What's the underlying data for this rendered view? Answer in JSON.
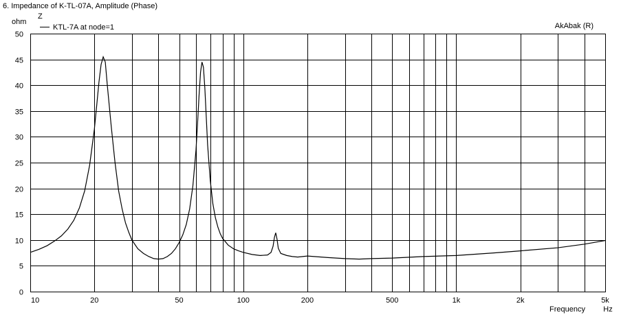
{
  "window": {
    "title": "6. Impedance of K-TL-07A, Amplitude (Phase)"
  },
  "chart_data": {
    "type": "line",
    "title": "6. Impedance of K-TL-07A, Amplitude (Phase)",
    "ylabel_unit": "ohm",
    "ylabel_symbol": "Z",
    "xlabel": "Frequency",
    "xunit": "Hz",
    "watermark": "AkAbak (R)",
    "xscale": "log",
    "xlim": [
      10,
      5000
    ],
    "ylim": [
      0,
      50
    ],
    "grid": true,
    "legend_placement": "top-left",
    "x_ticks": [
      {
        "value": 10,
        "label": "10"
      },
      {
        "value": 20,
        "label": "20"
      },
      {
        "value": 50,
        "label": "50"
      },
      {
        "value": 100,
        "label": "100"
      },
      {
        "value": 200,
        "label": "200"
      },
      {
        "value": 500,
        "label": "500"
      },
      {
        "value": 1000,
        "label": "1k"
      },
      {
        "value": 2000,
        "label": "2k"
      },
      {
        "value": 5000,
        "label": "5k"
      }
    ],
    "y_ticks": [
      0,
      5,
      10,
      15,
      20,
      25,
      30,
      35,
      40,
      45,
      50
    ],
    "series": [
      {
        "name": "KTL-7A at node=1",
        "color": "#000000",
        "x": [
          10,
          11,
          12,
          13,
          14,
          15,
          16,
          17,
          18,
          19,
          20,
          20.5,
          21,
          21.5,
          22,
          22.5,
          23,
          24,
          25,
          26,
          27,
          28,
          29,
          30,
          32,
          34,
          36,
          38,
          40,
          42,
          44,
          46,
          48,
          50,
          52,
          54,
          56,
          58,
          60,
          61,
          62,
          63,
          64,
          65,
          66,
          67,
          68,
          70,
          72,
          74,
          76,
          78,
          80,
          85,
          90,
          95,
          100,
          110,
          120,
          130,
          135,
          138,
          140,
          142,
          144,
          146,
          150,
          160,
          170,
          180,
          190,
          200,
          250,
          300,
          350,
          400,
          500,
          700,
          1000,
          1500,
          2000,
          3000,
          4000,
          5000
        ],
        "y": [
          7.6,
          8.2,
          8.9,
          9.8,
          10.8,
          12.1,
          13.8,
          16.2,
          19.5,
          24.5,
          31.5,
          36.0,
          40.5,
          44.0,
          45.5,
          44.5,
          40.0,
          32.0,
          25.0,
          19.5,
          16.0,
          13.3,
          11.5,
          10.0,
          8.3,
          7.4,
          6.8,
          6.4,
          6.3,
          6.4,
          6.8,
          7.4,
          8.3,
          9.5,
          11.0,
          13.0,
          16.0,
          20.5,
          27.5,
          32.5,
          38.0,
          42.5,
          44.5,
          43.5,
          39.5,
          34.0,
          28.5,
          21.5,
          17.0,
          14.3,
          12.5,
          11.2,
          10.3,
          9.0,
          8.3,
          7.9,
          7.6,
          7.2,
          7.0,
          7.1,
          7.6,
          8.8,
          10.5,
          11.4,
          10.2,
          8.4,
          7.4,
          7.0,
          6.8,
          6.7,
          6.8,
          6.9,
          6.6,
          6.4,
          6.3,
          6.4,
          6.5,
          6.8,
          7.0,
          7.5,
          7.9,
          8.5,
          9.2,
          9.9
        ]
      }
    ]
  }
}
